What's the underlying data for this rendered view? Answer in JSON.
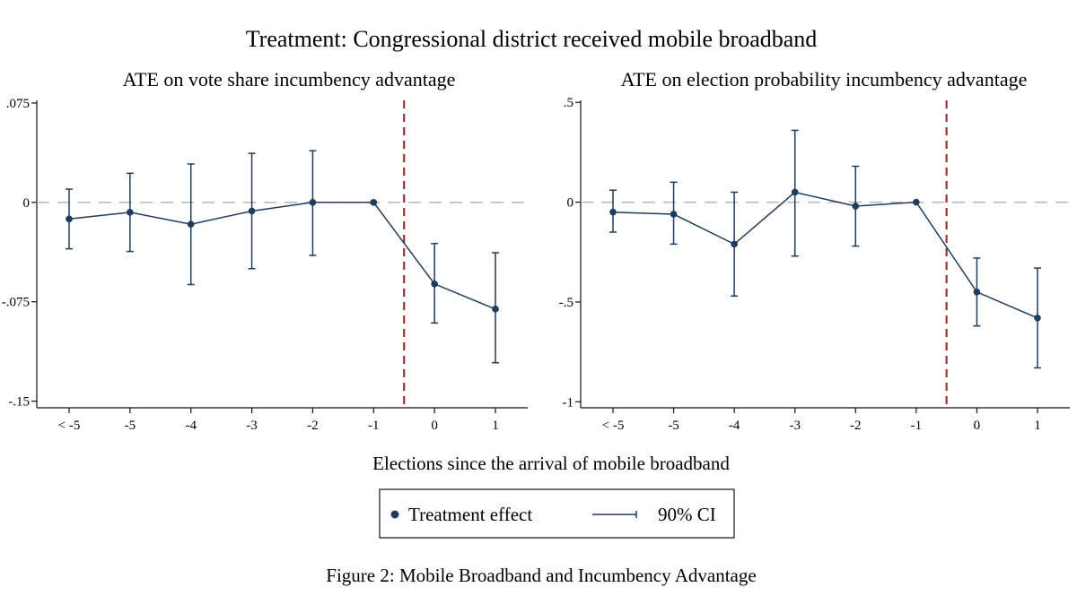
{
  "figure": {
    "main_title": "Treatment: Congressional district received mobile broadband",
    "xlabel": "Elections since the arrival of mobile broadband",
    "caption": "Figure 2: Mobile Broadband and Incumbency Advantage",
    "legend": {
      "point_label": "Treatment effect",
      "ci_label": "90% CI"
    }
  },
  "colors": {
    "series": "#1f3c5e",
    "reference_line": "#a33030",
    "zero_line": "#b5b5b5",
    "axis": "#111111"
  },
  "chart_data": [
    {
      "type": "line",
      "title": "ATE on vote share incumbency advantage",
      "x": [
        "< -5",
        "-5",
        "-4",
        "-3",
        "-2",
        "-1",
        "0",
        "1"
      ],
      "y": [
        -0.0125,
        -0.0075,
        -0.0165,
        -0.0065,
        0.0,
        0.0,
        -0.0615,
        -0.0805
      ],
      "ci_low": [
        -0.035,
        -0.037,
        -0.062,
        -0.05,
        -0.04,
        0.0,
        -0.091,
        -0.121
      ],
      "ci_high": [
        0.01,
        0.022,
        0.029,
        0.037,
        0.039,
        0.0,
        -0.031,
        -0.038
      ],
      "yticks": [
        ".075",
        "0",
        "-.075",
        "-.15"
      ],
      "ytick_values": [
        0.075,
        0,
        -0.075,
        -0.15
      ],
      "ylim": [
        -0.155,
        0.077
      ],
      "treatment_line_x": -0.5,
      "zero_line": true,
      "grid": false
    },
    {
      "type": "line",
      "title": "ATE on election probability incumbency advantage",
      "x": [
        "< -5",
        "-5",
        "-4",
        "-3",
        "-2",
        "-1",
        "0",
        "1"
      ],
      "y": [
        -0.05,
        -0.06,
        -0.21,
        0.05,
        -0.02,
        0.0,
        -0.45,
        -0.58
      ],
      "ci_low": [
        -0.15,
        -0.21,
        -0.47,
        -0.27,
        -0.22,
        0.0,
        -0.62,
        -0.83
      ],
      "ci_high": [
        0.06,
        0.1,
        0.05,
        0.36,
        0.18,
        0.0,
        -0.28,
        -0.33
      ],
      "yticks": [
        ".5",
        "0",
        "-.5",
        "-1"
      ],
      "ytick_values": [
        0.5,
        0,
        -0.5,
        -1
      ],
      "ylim": [
        -1.03,
        0.51
      ],
      "treatment_line_x": -0.5,
      "zero_line": true,
      "grid": false
    }
  ]
}
